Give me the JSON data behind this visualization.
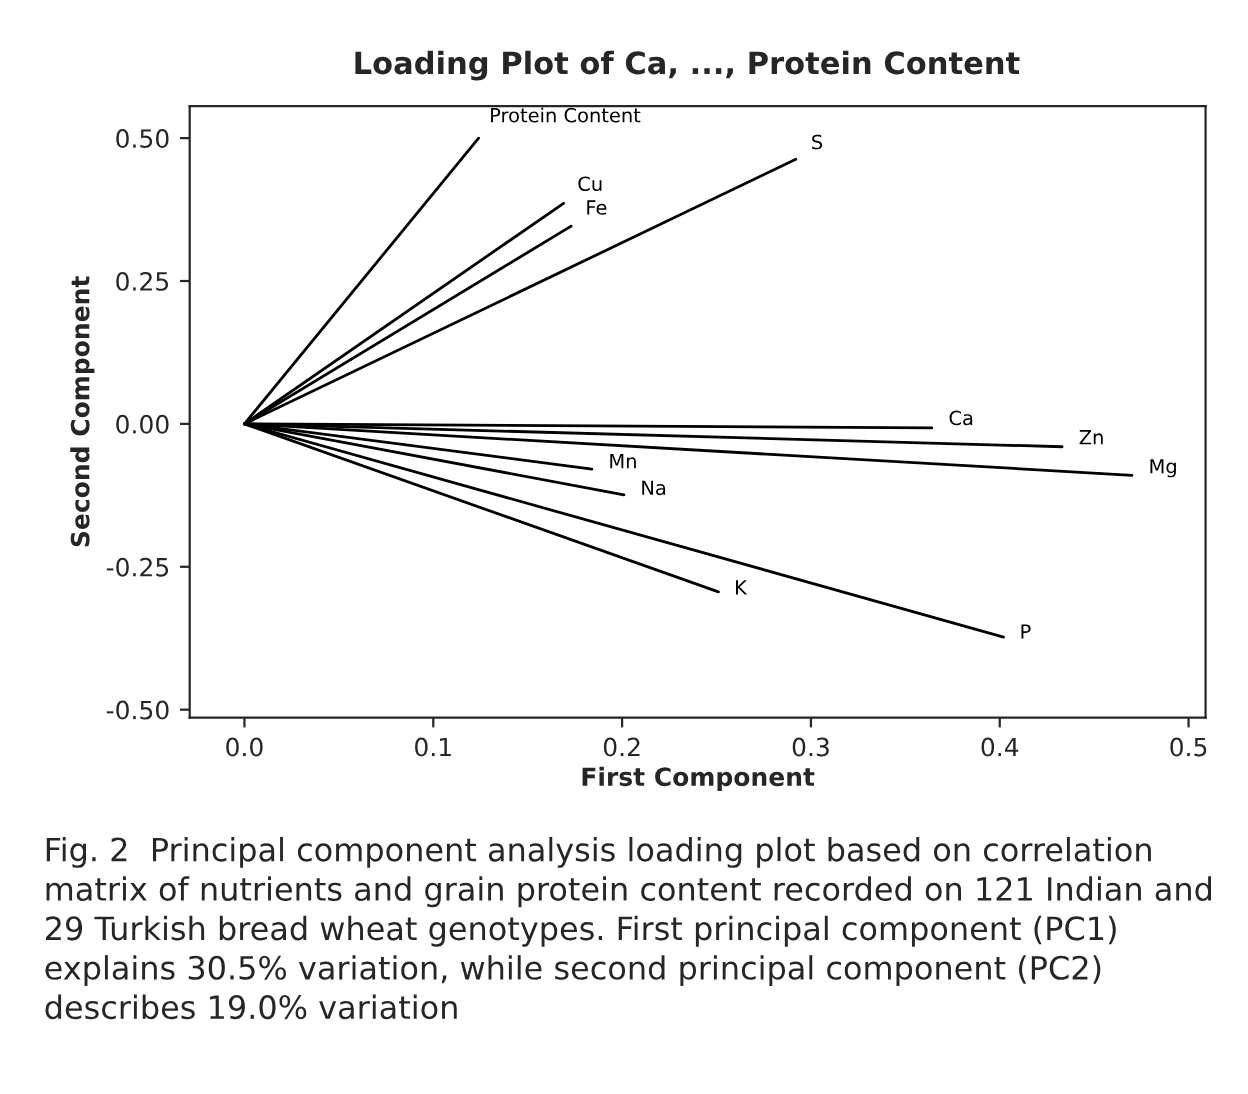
{
  "chart_data": {
    "type": "line",
    "title": "Loading Plot of Ca, ..., Protein Content",
    "xlabel": "First Component",
    "ylabel": "Second Component",
    "xlim": [
      -0.029,
      0.509
    ],
    "xticks": [
      {
        "value": 0,
        "label": "0.0"
      },
      0.1,
      0.2,
      0.3,
      0.4,
      0.5
    ],
    "ylim": [
      -0.514,
      0.556
    ],
    "yticks": [
      {
        "value": -0.5,
        "label": "-0.50"
      },
      {
        "value": -0.25,
        "label": "-0.25"
      },
      {
        "value": 0,
        "label": "0.00"
      },
      {
        "value": 0.25,
        "label": "0.25"
      },
      {
        "value": 0.5,
        "label": "0.50"
      }
    ],
    "grid": false,
    "legend": false,
    "marker": "none",
    "line_style": "solid",
    "series": [
      {
        "name": "Protein Content",
        "color": "#000000",
        "x": [
          0,
          0.124
        ],
        "values": [
          0,
          0.5
        ]
      },
      {
        "name": "Cu",
        "color": "#000000",
        "x": [
          0,
          0.169
        ],
        "values": [
          0,
          0.386
        ]
      },
      {
        "name": "Fe",
        "color": "#000000",
        "x": [
          0,
          0.173
        ],
        "values": [
          0,
          0.346
        ]
      },
      {
        "name": "S",
        "color": "#000000",
        "x": [
          0,
          0.292
        ],
        "values": [
          0,
          0.463
        ]
      },
      {
        "name": "Ca",
        "color": "#000000",
        "x": [
          0,
          0.364
        ],
        "values": [
          0,
          -0.007
        ]
      },
      {
        "name": "Zn",
        "color": "#000000",
        "x": [
          0,
          0.433
        ],
        "values": [
          0,
          -0.04
        ]
      },
      {
        "name": "Mg",
        "color": "#000000",
        "x": [
          0,
          0.47
        ],
        "values": [
          0,
          -0.09
        ]
      },
      {
        "name": "Mn",
        "color": "#000000",
        "x": [
          0,
          0.184
        ],
        "values": [
          0,
          -0.079
        ]
      },
      {
        "name": "Na",
        "color": "#000000",
        "x": [
          0,
          0.201
        ],
        "values": [
          0,
          -0.124
        ]
      },
      {
        "name": "K",
        "color": "#000000",
        "x": [
          0,
          0.251
        ],
        "values": [
          0,
          -0.294
        ]
      },
      {
        "name": "P",
        "color": "#000000",
        "x": [
          0,
          0.402
        ],
        "values": [
          0,
          -0.373
        ]
      }
    ],
    "annotations": [
      "Fig. 2  Principal component analysis loading plot based on correlation matrix of nutrients and grain protein content recorded on 121 Indian and 29 Turkish bread wheat genotypes. First principal component (PC1) explains 30.5% variation, while second principal component (PC2) describes 19.0% variation"
    ]
  }
}
